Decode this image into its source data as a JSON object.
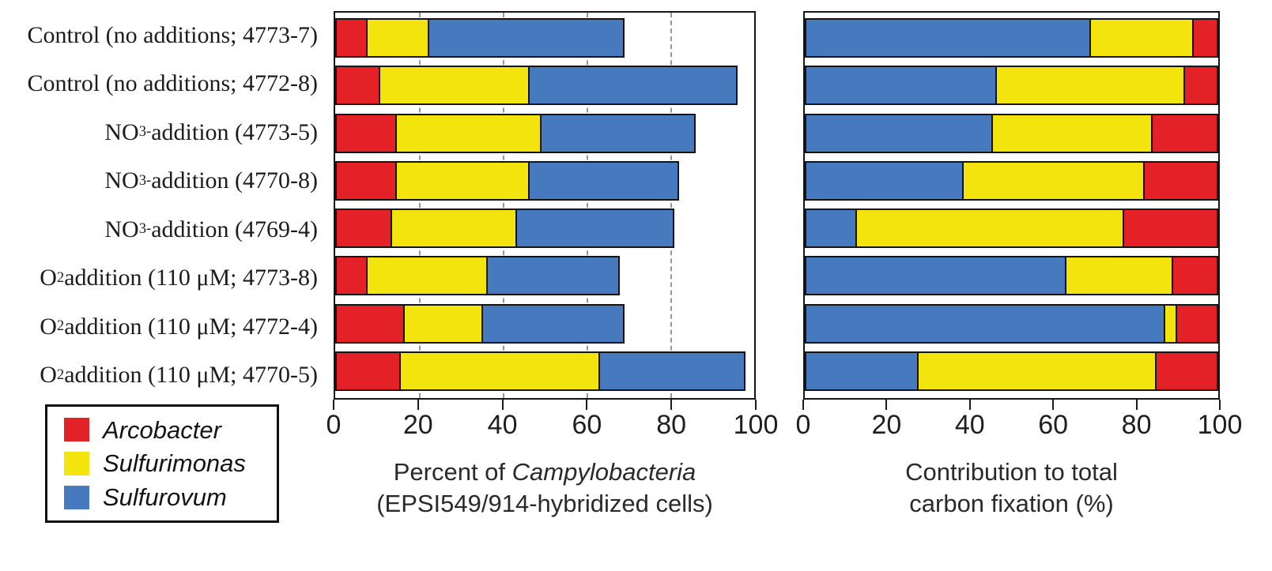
{
  "colors": {
    "arcobacter": "#e32126",
    "sulfurimonas": "#f3e40e",
    "sulfurovum": "#4679bd"
  },
  "legend": {
    "items": [
      {
        "label": "Arcobacter",
        "color_key": "arcobacter"
      },
      {
        "label": "Sulfurimonas",
        "color_key": "sulfurimonas"
      },
      {
        "label": "Sulfurovum",
        "color_key": "sulfurovum"
      }
    ]
  },
  "categories": [
    [
      {
        "t": "Control (no additions; 4773-7)"
      }
    ],
    [
      {
        "t": "Control (no additions; 4772-8)"
      }
    ],
    [
      {
        "t": "NO"
      },
      {
        "t": "3",
        "style": "sub"
      },
      {
        "t": "-",
        "style": "sup"
      },
      {
        "t": " addition (4773-5)"
      }
    ],
    [
      {
        "t": "NO"
      },
      {
        "t": "3",
        "style": "sub"
      },
      {
        "t": "-",
        "style": "sup"
      },
      {
        "t": " addition (4770-8)"
      }
    ],
    [
      {
        "t": "NO"
      },
      {
        "t": "3",
        "style": "sub"
      },
      {
        "t": "-",
        "style": "sup"
      },
      {
        "t": " addition (4769-4)"
      }
    ],
    [
      {
        "t": "O"
      },
      {
        "t": "2",
        "style": "sub"
      },
      {
        "t": " addition (110 μM; 4773-8)"
      }
    ],
    [
      {
        "t": "O"
      },
      {
        "t": "2",
        "style": "sub"
      },
      {
        "t": " addition (110 μM; 4772-4)"
      }
    ],
    [
      {
        "t": "O"
      },
      {
        "t": "2",
        "style": "sub"
      },
      {
        "t": " addition (110 μM; 4770-5)"
      }
    ]
  ],
  "chart_data": [
    {
      "type": "bar",
      "subtype": "horizontal-stacked",
      "xlim": [
        0,
        100
      ],
      "ticks": [
        0,
        20,
        40,
        60,
        80,
        100
      ],
      "grid": "dashed vertical at 20/40/60/80",
      "legend_position": "bottom-left external box",
      "xlabel_lines": [
        [
          {
            "t": "Percent of "
          },
          {
            "t": "Campylobacteria",
            "style": "i"
          }
        ],
        [
          {
            "t": "(EPSI549/914-hybridized cells)"
          }
        ]
      ],
      "categories": [
        "Control (no additions; 4773-7)",
        "Control (no additions; 4772-8)",
        "NO3- addition (4773-5)",
        "NO3- addition (4770-8)",
        "NO3- addition (4769-4)",
        "O2 addition (110 uM; 4773-8)",
        "O2 addition (110 uM; 4772-4)",
        "O2 addition (110 uM; 4770-5)"
      ],
      "series": [
        {
          "name": "Arcobacter",
          "color_key": "arcobacter",
          "values": [
            7,
            10,
            14,
            14,
            13,
            7,
            16,
            15
          ]
        },
        {
          "name": "Sulfurimonas",
          "color_key": "sulfurimonas",
          "values": [
            15,
            36,
            35,
            32,
            30,
            29,
            19,
            48
          ]
        },
        {
          "name": "Sulfurovum",
          "color_key": "sulfurovum",
          "values": [
            47,
            50,
            37,
            36,
            38,
            32,
            34,
            35
          ]
        }
      ]
    },
    {
      "type": "bar",
      "subtype": "horizontal-stacked",
      "xlim": [
        0,
        100
      ],
      "ticks": [
        0,
        20,
        40,
        60,
        80,
        100
      ],
      "grid": "none visible (bars span full width)",
      "xlabel_lines": [
        [
          {
            "t": "Contribution to total"
          }
        ],
        [
          {
            "t": "carbon fixation (%)"
          }
        ]
      ],
      "categories": [
        "Control (no additions; 4773-7)",
        "Control (no additions; 4772-8)",
        "NO3- addition (4773-5)",
        "NO3- addition (4770-8)",
        "NO3- addition (4769-4)",
        "O2 addition (110 uM; 4773-8)",
        "O2 addition (110 uM; 4772-4)",
        "O2 addition (110 uM; 4770-5)"
      ],
      "series": [
        {
          "name": "Sulfurovum",
          "color_key": "sulfurovum",
          "values": [
            69,
            46,
            45,
            38,
            12,
            63,
            87,
            27
          ]
        },
        {
          "name": "Sulfurimonas",
          "color_key": "sulfurimonas",
          "values": [
            25,
            46,
            39,
            44,
            65,
            26,
            3,
            58
          ]
        },
        {
          "name": "Arcobacter",
          "color_key": "arcobacter",
          "values": [
            6,
            8,
            16,
            18,
            23,
            11,
            10,
            15
          ]
        }
      ]
    }
  ]
}
